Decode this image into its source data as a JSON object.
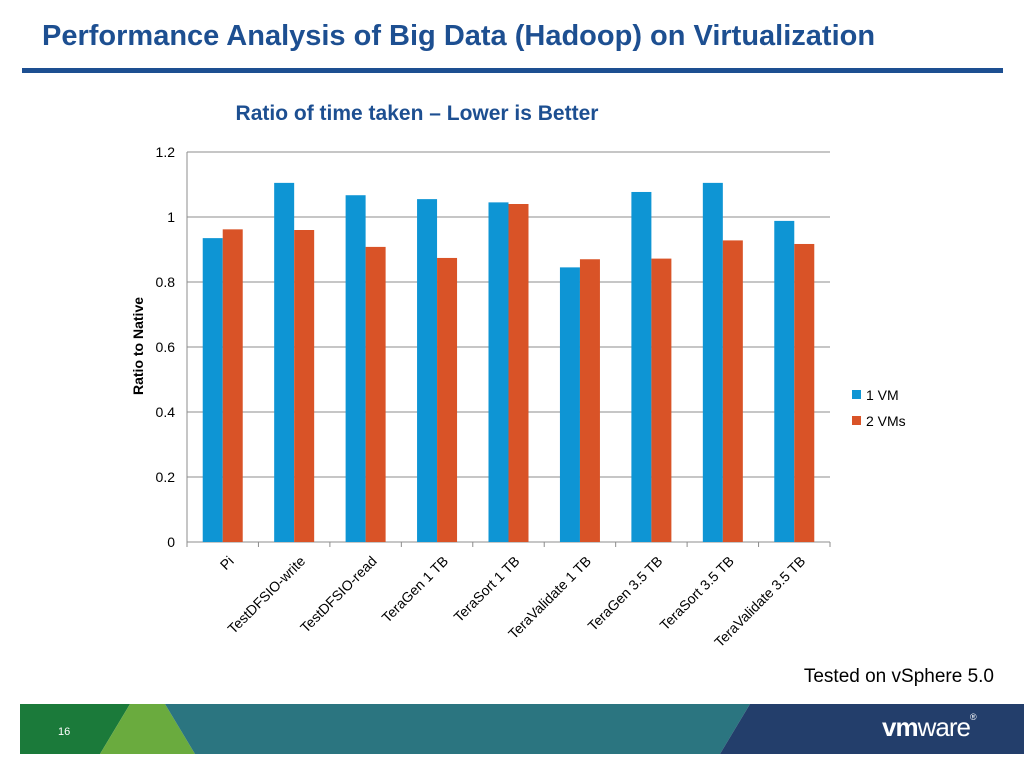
{
  "slide": {
    "title": "Performance Analysis of Big Data (Hadoop) on Virtualization",
    "note": "Tested on vSphere 5.0",
    "page_number": "16",
    "logo_text": "vmware"
  },
  "colors": {
    "title": "#1d4f91",
    "series_1": "#0e95d4",
    "series_2": "#d95327",
    "footer_green": "#6aab3e",
    "footer_dark_green": "#1b7a3a",
    "footer_teal": "#2b7580",
    "footer_navy": "#233e6b"
  },
  "chart_data": {
    "type": "bar",
    "title": "Ratio of time taken – Lower is Better",
    "xlabel": "",
    "ylabel": "Ratio to Native",
    "ylim": [
      0,
      1.2
    ],
    "yticks": [
      "0",
      "0.2",
      "0.4",
      "0.6",
      "0.8",
      "1",
      "1.2"
    ],
    "categories": [
      "Pi",
      "TestDFSIO-write",
      "TestDFSIO-read",
      "TeraGen 1 TB",
      "TeraSort 1 TB",
      "TeraValidate 1 TB",
      "TeraGen 3.5 TB",
      "TeraSort 3.5 TB",
      "TeraValidate 3.5 TB"
    ],
    "series": [
      {
        "name": "1 VM",
        "values": [
          0.935,
          1.105,
          1.067,
          1.055,
          1.045,
          0.845,
          1.077,
          1.105,
          0.988
        ]
      },
      {
        "name": "2 VMs",
        "values": [
          0.962,
          0.96,
          0.908,
          0.874,
          1.04,
          0.87,
          0.872,
          0.928,
          0.917
        ]
      }
    ],
    "grid": true,
    "legend": "right"
  }
}
